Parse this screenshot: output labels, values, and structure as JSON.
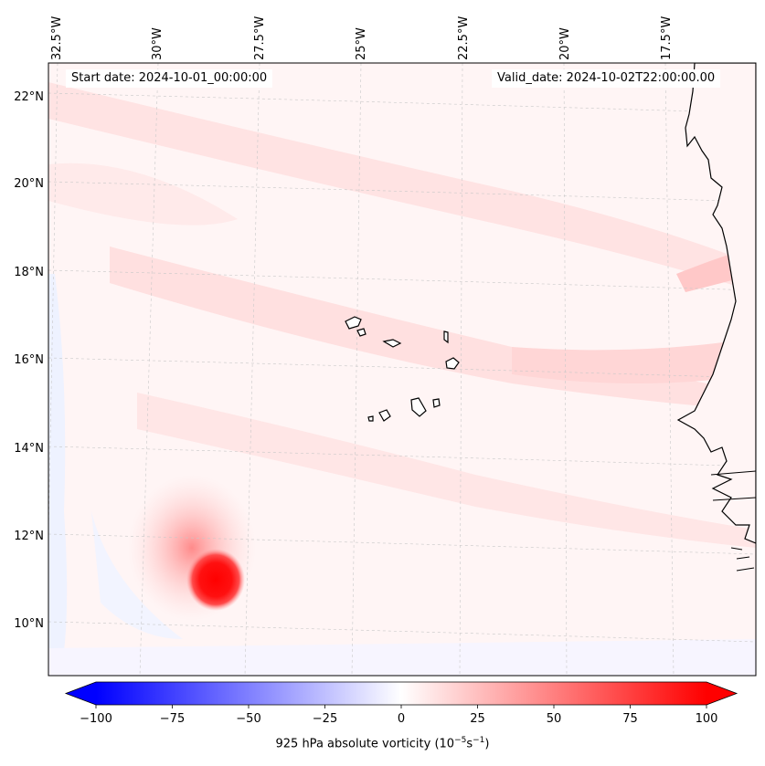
{
  "map": {
    "longitude_labels": [
      "32.5°W",
      "30°W",
      "27.5°W",
      "25°W",
      "22.5°W",
      "20°W",
      "17.5°W"
    ],
    "latitude_labels": [
      "22°N",
      "20°N",
      "18°N",
      "16°N",
      "14°N",
      "12°N",
      "10°N"
    ],
    "start_date": "Start date: 2024-10-01_00:00:00",
    "valid_date": "Valid_date: 2024-10-02T22:00:00.00",
    "field": "925 hPa absolute vorticity",
    "colors": {
      "max_positive": "#ff0000",
      "max_negative": "#0000ff",
      "background_tint": "#fff5f5",
      "coastline": "#000000",
      "gridline": "#c8c8c8"
    }
  },
  "colorbar": {
    "min": -100,
    "max": 100,
    "tick_labels": [
      "−100",
      "−75",
      "−50",
      "−25",
      "0",
      "25",
      "50",
      "75",
      "100"
    ],
    "label_prefix": "925 hPa absolute vorticity (10",
    "label_exp1": "−5",
    "label_mid": "s",
    "label_exp2": "−1",
    "label_suffix": ")"
  }
}
